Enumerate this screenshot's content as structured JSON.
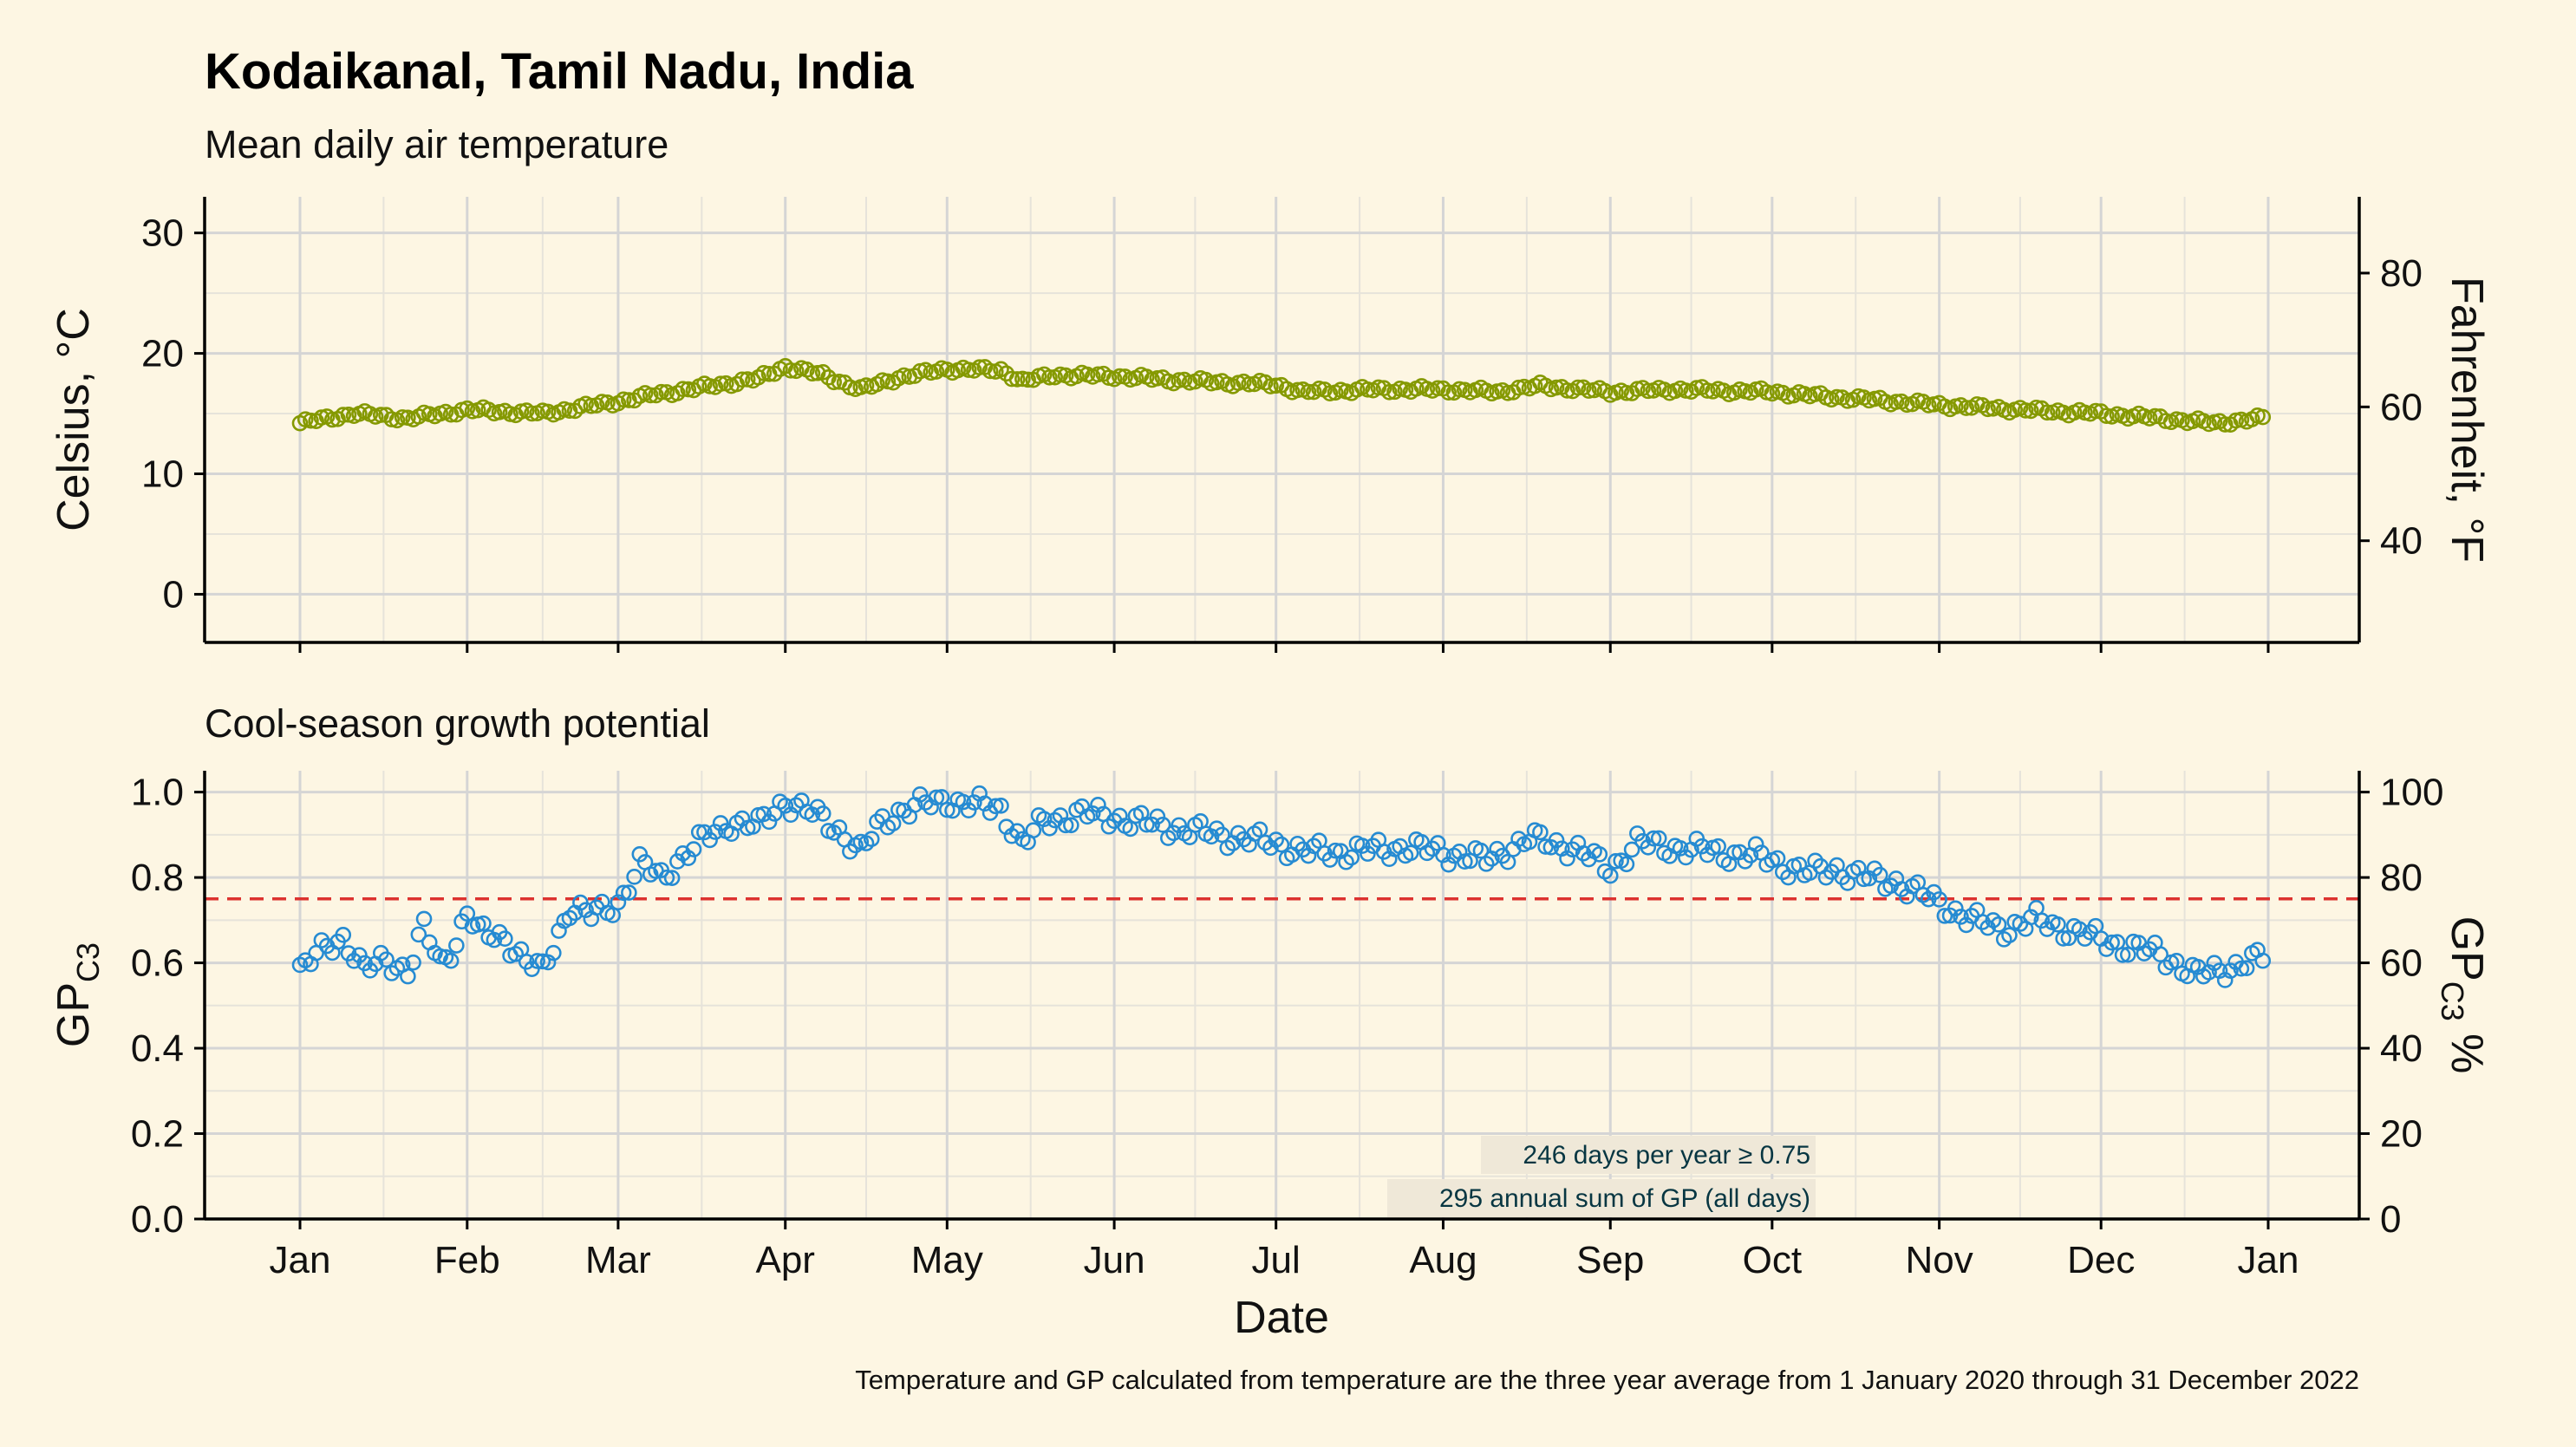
{
  "title": "Kodaikanal, Tamil Nadu, India",
  "footnote": "Temperature and GP calculated from temperature are the three year average from 1 January 2020 through 31 December 2022",
  "colors": {
    "background": "#fdf6e3",
    "temperature": "#859900",
    "gp": "#268bd2",
    "threshold": "#dc322f",
    "grid_major": "#d5d5d5",
    "grid_minor": "#e6e3da",
    "annotation_bg": "#efe8d8"
  },
  "x_axis": {
    "label": "Date",
    "ticks": [
      "Jan",
      "Feb",
      "Mar",
      "Apr",
      "May",
      "Jun",
      "Jul",
      "Aug",
      "Sep",
      "Oct",
      "Nov",
      "Dec",
      "Jan"
    ],
    "tick_days": [
      0,
      31,
      59,
      90,
      120,
      151,
      181,
      212,
      243,
      273,
      304,
      334,
      365
    ]
  },
  "chart_data": [
    {
      "type": "scatter",
      "subtitle": "Mean daily air temperature",
      "ylabel": "Celsius, °C",
      "ylabel_right": "Fahrenheit, °F",
      "ylim": [
        -4,
        33
      ],
      "yticks": [
        0,
        10,
        20,
        30
      ],
      "yticks_right": [
        40,
        60,
        80
      ],
      "grid": true,
      "series": [
        {
          "key_days": [
            0,
            10,
            20,
            31,
            45,
            59,
            66,
            75,
            85,
            90,
            97,
            104,
            111,
            120,
            130,
            134,
            140,
            151,
            165,
            181,
            186,
            200,
            212,
            222,
            230,
            243,
            255,
            273,
            283,
            290,
            304,
            320,
            334,
            345,
            355,
            364
          ],
          "key_values": [
            14.2,
            15.0,
            14.6,
            15.3,
            15.0,
            16.0,
            16.6,
            17.2,
            17.9,
            18.9,
            18.2,
            17.0,
            18.0,
            18.7,
            18.6,
            17.7,
            18.2,
            18.1,
            17.7,
            17.4,
            16.8,
            17.0,
            17.0,
            16.8,
            17.3,
            16.8,
            17.0,
            16.8,
            16.4,
            16.2,
            15.7,
            15.3,
            15.0,
            14.6,
            14.2,
            14.6
          ]
        }
      ]
    },
    {
      "type": "scatter",
      "subtitle": "Cool-season growth potential",
      "ylabel": "GP",
      "ylabel_sub": "C3",
      "ylabel_right": "GP",
      "ylabel_right_sub": "C3",
      "ylabel_right_suffix": " %",
      "ylim": [
        0,
        1.05
      ],
      "yticks": [
        0.0,
        0.2,
        0.4,
        0.6,
        0.8,
        1.0
      ],
      "yticks_right": [
        0,
        20,
        40,
        60,
        80,
        100
      ],
      "threshold": 0.75,
      "grid": true,
      "annotations": [
        "246 days per year ≥ 0.75",
        "295 annual sum of GP (all days)"
      ],
      "series": [
        {
          "key_days": [
            0,
            5,
            8,
            12,
            16,
            20,
            23,
            26,
            29,
            31,
            33,
            38,
            42,
            45,
            50,
            54,
            59,
            63,
            67,
            71,
            75,
            80,
            85,
            90,
            95,
            100,
            104,
            108,
            112,
            120,
            130,
            134,
            138,
            145,
            151,
            160,
            170,
            181,
            186,
            195,
            205,
            212,
            220,
            228,
            236,
            243,
            248,
            255,
            262,
            270,
            280,
            285,
            290,
            296,
            304,
            310,
            316,
            322,
            330,
            338,
            345,
            352,
            358,
            364
          ],
          "key_values": [
            0.58,
            0.64,
            0.66,
            0.58,
            0.61,
            0.58,
            0.68,
            0.6,
            0.65,
            0.72,
            0.67,
            0.66,
            0.6,
            0.58,
            0.73,
            0.71,
            0.74,
            0.83,
            0.8,
            0.85,
            0.89,
            0.93,
            0.92,
            0.98,
            0.95,
            0.91,
            0.86,
            0.93,
            0.96,
            0.98,
            0.96,
            0.88,
            0.93,
            0.95,
            0.94,
            0.92,
            0.9,
            0.88,
            0.86,
            0.86,
            0.87,
            0.86,
            0.84,
            0.89,
            0.87,
            0.82,
            0.88,
            0.87,
            0.86,
            0.85,
            0.81,
            0.82,
            0.8,
            0.79,
            0.74,
            0.7,
            0.68,
            0.7,
            0.67,
            0.64,
            0.62,
            0.57,
            0.59,
            0.61
          ]
        }
      ]
    }
  ]
}
